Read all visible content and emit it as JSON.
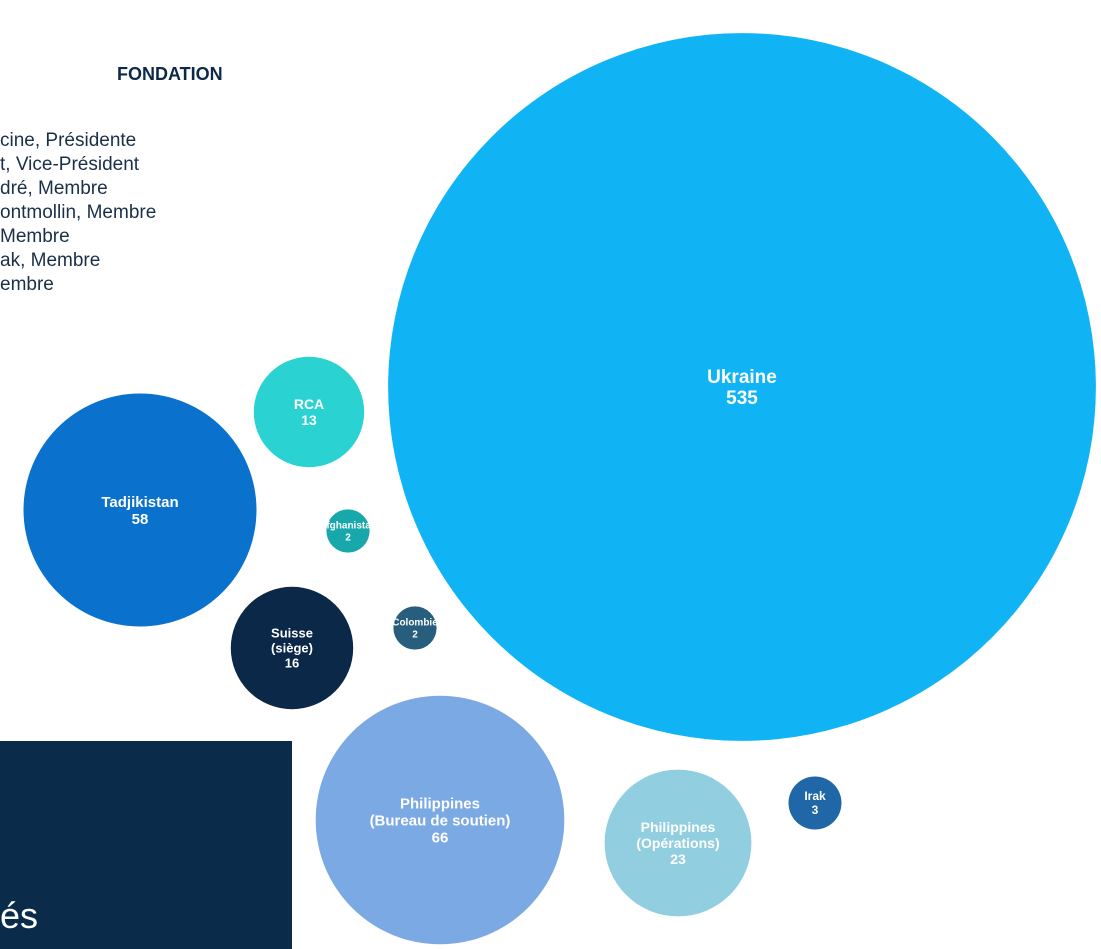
{
  "board": {
    "title": "FONDATION",
    "members": [
      "cine, Présidente",
      "t, Vice-Président",
      "dré, Membre",
      "ontmollin, Membre",
      "Membre",
      "ak, Membre",
      "embre"
    ]
  },
  "footer": {
    "text": "és"
  },
  "chart_data": {
    "type": "bubble",
    "title": "",
    "bubbles": [
      {
        "label": [
          "Ukraine"
        ],
        "value": 535,
        "color": "#10b4f5"
      },
      {
        "label": [
          "Philippines",
          "(Bureau de soutien)"
        ],
        "value": 66,
        "color": "#7ba9e3"
      },
      {
        "label": [
          "Tadjikistan"
        ],
        "value": 58,
        "color": "#0a72cd"
      },
      {
        "label": [
          "Philippines",
          "(Opérations)"
        ],
        "value": 23,
        "color": "#91cfe0"
      },
      {
        "label": [
          "Suisse",
          "(siège)"
        ],
        "value": 16,
        "color": "#0b2848"
      },
      {
        "label": [
          "RCA"
        ],
        "value": 13,
        "color": "#2bd2d2"
      },
      {
        "label": [
          "Irak"
        ],
        "value": 3,
        "color": "#1f67a7"
      },
      {
        "label": [
          "Afghanistan"
        ],
        "value": 2,
        "color": "#18a8ab"
      },
      {
        "label": [
          "Colombie"
        ],
        "value": 2,
        "color": "#275d7d"
      }
    ]
  }
}
